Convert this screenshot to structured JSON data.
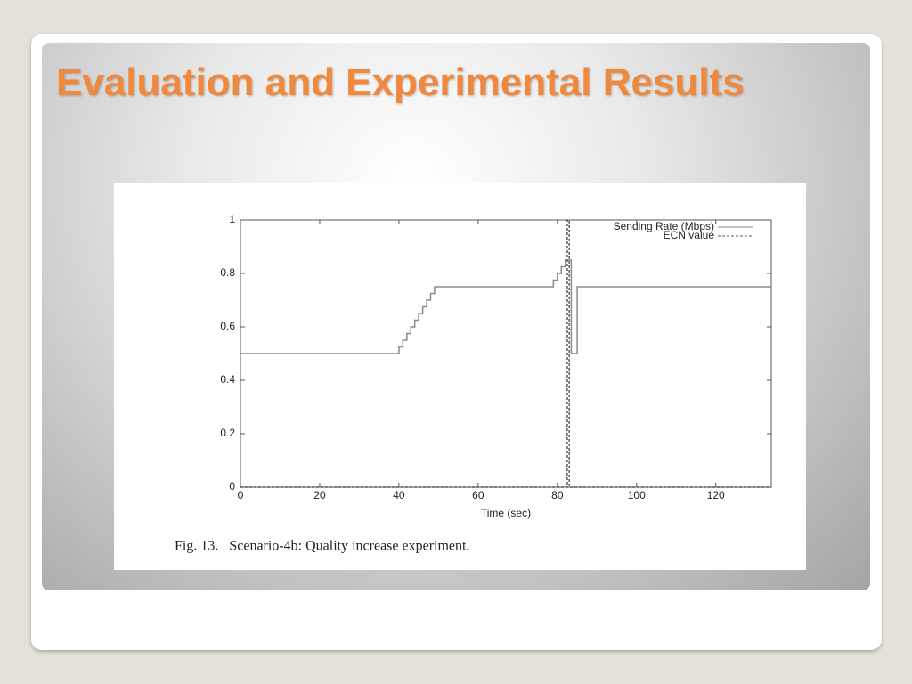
{
  "slide": {
    "title": "Evaluation and Experimental Results"
  },
  "chart_data": {
    "type": "line",
    "caption": "Fig. 13.   Scenario-4b: Quality increase experiment.",
    "xlabel": "Time (sec)",
    "xlim": [
      0,
      134
    ],
    "ylim": [
      0,
      1
    ],
    "xticks": [
      0,
      20,
      40,
      60,
      80,
      100,
      120
    ],
    "yticks": [
      0,
      0.2,
      0.4,
      0.6,
      0.8,
      1
    ],
    "legend": "upper right",
    "series": [
      {
        "name": "Sending Rate (Mbps)",
        "color": "#8a8a8a",
        "dash": false,
        "x": [
          0,
          40,
          40,
          41,
          41,
          42,
          42,
          43,
          43,
          44,
          44,
          45,
          45,
          46,
          46,
          47,
          47,
          48,
          48,
          49,
          49,
          79,
          79,
          80,
          80,
          81,
          81,
          82,
          82,
          83.5,
          83.5,
          85,
          85,
          134
        ],
        "values": [
          0.5,
          0.5,
          0.525,
          0.525,
          0.55,
          0.55,
          0.575,
          0.575,
          0.6,
          0.6,
          0.625,
          0.625,
          0.65,
          0.65,
          0.675,
          0.675,
          0.7,
          0.7,
          0.725,
          0.725,
          0.75,
          0.75,
          0.775,
          0.775,
          0.8,
          0.8,
          0.825,
          0.825,
          0.85,
          0.85,
          0.5,
          0.5,
          0.75,
          0.75
        ]
      },
      {
        "name": "ECN value",
        "color": "#555555",
        "dash": true,
        "x": [
          0,
          82.5,
          82.5,
          83,
          83,
          134
        ],
        "values": [
          0,
          0,
          1,
          1,
          0,
          0
        ]
      }
    ]
  }
}
